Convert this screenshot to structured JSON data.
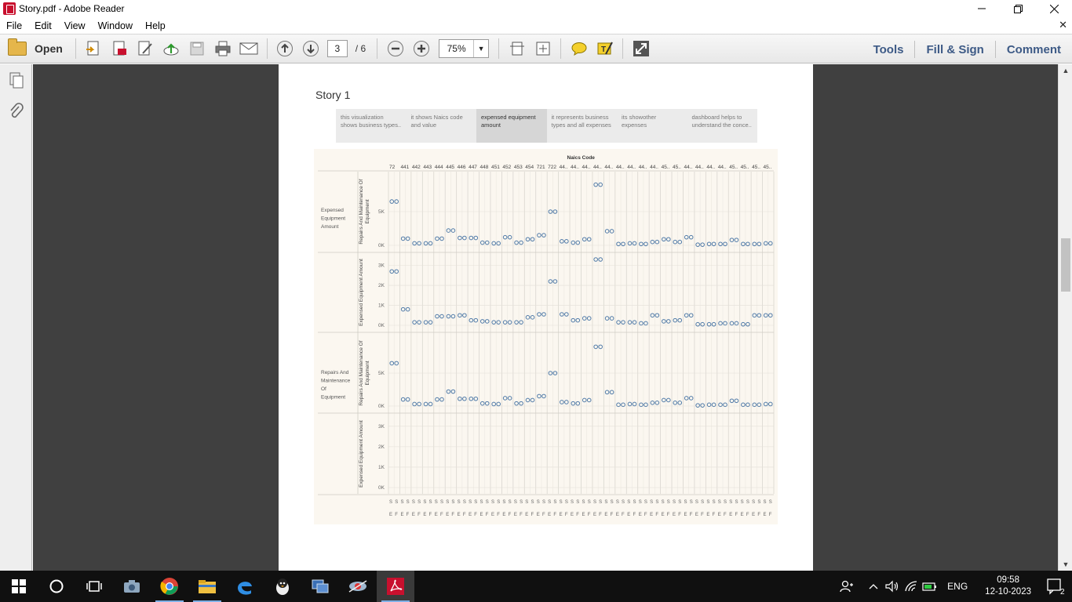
{
  "window": {
    "title": "Story.pdf - Adobe Reader"
  },
  "menu": [
    "File",
    "Edit",
    "View",
    "Window",
    "Help"
  ],
  "toolbar": {
    "open_label": "Open",
    "current_page": "3",
    "total_pages": "/ 6",
    "zoom": "75%",
    "right_links": [
      "Tools",
      "Fill & Sign",
      "Comment"
    ]
  },
  "story": {
    "title": "Story 1",
    "points": [
      {
        "text": "this visualization shows business types..",
        "active": false
      },
      {
        "text": "it shows Naics code and value",
        "active": false
      },
      {
        "text": "expensed equipment amount",
        "active": true
      },
      {
        "text": "it represents business types and all expenses",
        "active": false
      },
      {
        "text": "its showother expenses",
        "active": false
      },
      {
        "text": "dashboard helps to understand the conce..",
        "active": false
      }
    ]
  },
  "chart_data": {
    "type": "scatter",
    "title": "",
    "column_header": "Naics Code",
    "naics_codes": [
      "72",
      "441",
      "442",
      "443",
      "444",
      "445",
      "446",
      "447",
      "448",
      "451",
      "452",
      "453",
      "454",
      "721",
      "722",
      "44..",
      "44..",
      "44..",
      "44..",
      "44..",
      "44..",
      "44..",
      "44..",
      "44..",
      "45..",
      "45..",
      "44..",
      "44..",
      "44..",
      "44..",
      "45..",
      "45..",
      "45..",
      "45.."
    ],
    "row_groups": [
      "Expensed Equipment Amount",
      "Repairs And Maintenance Of Equipment"
    ],
    "measures": [
      "Repairs And Maintenance Of Equipment",
      "Expensed Equipment Amount"
    ],
    "axis_ticks": {
      "repairs": [
        "5K",
        "0K"
      ],
      "expensed": [
        "3K",
        "2K",
        "1K",
        "0K"
      ]
    },
    "footer_labels": [
      "S",
      "E",
      "F"
    ],
    "series": [
      {
        "name": "Expensed Equipment Amount",
        "values": [
          2700,
          800,
          150,
          150,
          450,
          450,
          500,
          250,
          200,
          150,
          150,
          150,
          400,
          550,
          2200,
          550,
          250,
          350,
          3300,
          350,
          150,
          150,
          100,
          500,
          200,
          250,
          500,
          50,
          50,
          100,
          100,
          50,
          500,
          500
        ]
      },
      {
        "name": "Repairs And Maintenance Of Equipment",
        "values": [
          6500,
          1000,
          300,
          300,
          1000,
          2200,
          1100,
          1100,
          400,
          300,
          1200,
          400,
          900,
          1500,
          5000,
          600,
          400,
          900,
          9000,
          2100,
          200,
          300,
          200,
          500,
          900,
          500,
          1200,
          100,
          200,
          200,
          800,
          200,
          200,
          300
        ]
      }
    ]
  }
}
